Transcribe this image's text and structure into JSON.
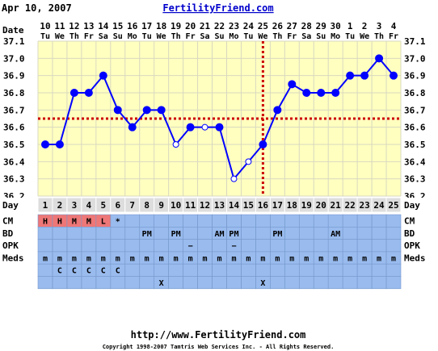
{
  "header": {
    "date": "Apr 10, 2007",
    "site": "FertilityFriend.com"
  },
  "footer": {
    "url": "http://www.FertilityFriend.com",
    "copyright": "Copyright 1998-2007 Tamtris Web Services Inc. - All Rights Reserved."
  },
  "colors": {
    "plot_bg": "#ffffc0",
    "line": "#0000ff",
    "marker": "#0000ff",
    "coverline": "#cc0000",
    "ovulation": "#cc0000",
    "grid_row_bg": "#99bbee",
    "header_row_bg": "#dddddd",
    "cm_cell": "#ee7777",
    "link": "#0000cc"
  },
  "chart_data": {
    "type": "line",
    "title": "",
    "xlabel": "Day",
    "ylabel": "",
    "ylim": [
      36.2,
      37.1
    ],
    "yticks": [
      "36.2",
      "36.3",
      "36.4",
      "36.5",
      "36.6",
      "36.7",
      "36.8",
      "36.9",
      "37.0",
      "37.1"
    ],
    "grid": true,
    "date_row_label": "Date",
    "dates": [
      "10",
      "11",
      "12",
      "13",
      "14",
      "15",
      "16",
      "17",
      "18",
      "19",
      "20",
      "21",
      "22",
      "23",
      "24",
      "25",
      "26",
      "27",
      "28",
      "29",
      "30",
      "1",
      "2",
      "3",
      "4"
    ],
    "weekdays": [
      "Tu",
      "We",
      "Th",
      "Fr",
      "Sa",
      "Su",
      "Mo",
      "Tu",
      "We",
      "Th",
      "Fr",
      "Sa",
      "Su",
      "Mo",
      "Tu",
      "We",
      "Th",
      "Fr",
      "Sa",
      "Su",
      "Mo",
      "Tu",
      "We",
      "Th",
      "Fr"
    ],
    "day_row_label": "Day",
    "days": [
      "1",
      "2",
      "3",
      "4",
      "5",
      "6",
      "7",
      "8",
      "9",
      "10",
      "11",
      "12",
      "13",
      "14",
      "15",
      "16",
      "17",
      "18",
      "19",
      "20",
      "21",
      "22",
      "23",
      "24",
      "25"
    ],
    "series": [
      {
        "values": [
          36.5,
          36.5,
          36.8,
          36.8,
          36.9,
          36.7,
          36.6,
          36.7,
          36.7,
          36.5,
          36.6,
          36.6,
          36.6,
          36.3,
          36.4,
          36.5,
          36.7,
          36.85,
          36.8,
          36.8,
          36.8,
          36.9,
          36.9,
          37.0,
          36.9
        ],
        "open_marker_days": [
          10,
          12,
          14,
          15
        ]
      }
    ],
    "coverline": 36.65,
    "ovulation_day": 16,
    "rows": [
      {
        "label": "CM",
        "cells": [
          "H",
          "H",
          "M",
          "M",
          "L",
          "*",
          "",
          "",
          "",
          "",
          "",
          "",
          "",
          "",
          "",
          "",
          "",
          "",
          "",
          "",
          "",
          "",
          "",
          "",
          ""
        ],
        "highlight": [
          1,
          2,
          3,
          4,
          5
        ]
      },
      {
        "label": "BD",
        "cells": [
          "",
          "",
          "",
          "",
          "",
          "",
          "",
          "PM",
          "",
          "PM",
          "",
          "",
          "AM",
          "PM",
          "",
          "",
          "PM",
          "",
          "",
          "",
          "AM",
          "",
          "",
          "",
          ""
        ]
      },
      {
        "label": "OPK",
        "cells": [
          "",
          "",
          "",
          "",
          "",
          "",
          "",
          "",
          "",
          "",
          "−",
          "",
          "",
          "−",
          "",
          "",
          "",
          "",
          "",
          "",
          "",
          "",
          "",
          "",
          ""
        ]
      },
      {
        "label": "Meds",
        "cells": [
          "m",
          "m",
          "m",
          "m",
          "m",
          "m",
          "m",
          "m",
          "m",
          "m",
          "m",
          "m",
          "m",
          "m",
          "m",
          "m",
          "m",
          "m",
          "m",
          "m",
          "m",
          "m",
          "m",
          "m",
          "m"
        ]
      },
      {
        "label": "",
        "cells": [
          "",
          "C",
          "C",
          "C",
          "C",
          "C",
          "",
          "",
          "",
          "",
          "",
          "",
          "",
          "",
          "",
          "",
          "",
          "",
          "",
          "",
          "",
          "",
          "",
          "",
          ""
        ]
      },
      {
        "label": "",
        "cells": [
          "",
          "",
          "",
          "",
          "",
          "",
          "",
          "",
          "X",
          "",
          "",
          "",
          "",
          "",
          "",
          "X",
          "",
          "",
          "",
          "",
          "",
          "",
          "",
          "",
          ""
        ]
      }
    ]
  }
}
